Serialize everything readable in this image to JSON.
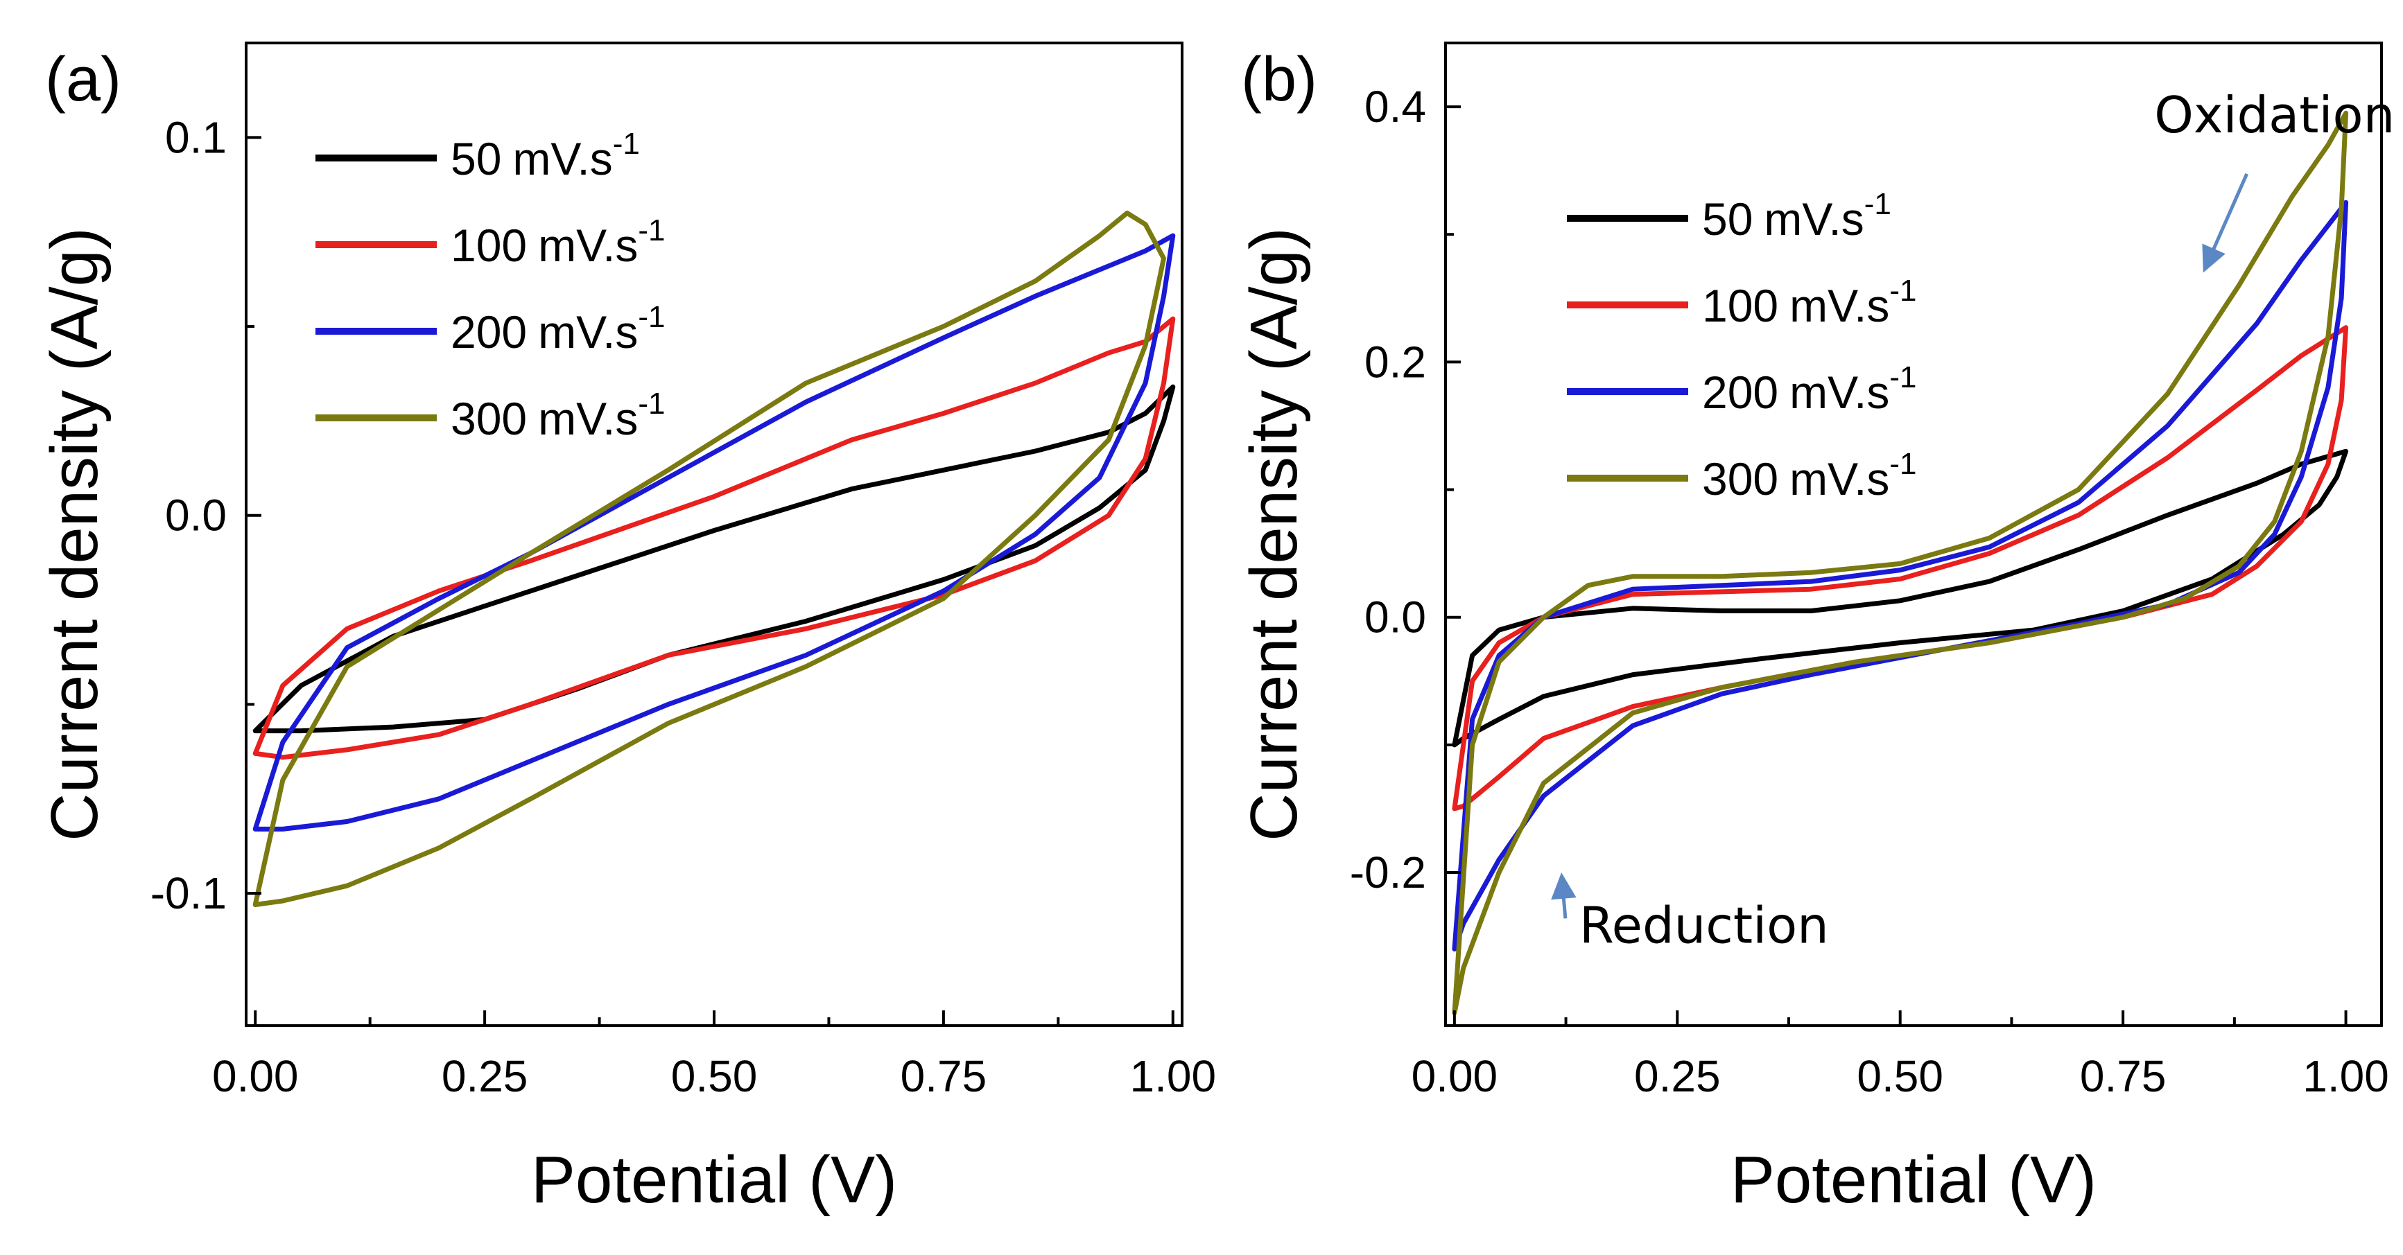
{
  "colors": {
    "50": "#000000",
    "100": "#e8201e",
    "200": "#1a1ad6",
    "300": "#7a7a10",
    "arrow": "#5b87c5"
  },
  "chart_data": [
    {
      "type": "line",
      "panel_label": "(a)",
      "xlabel": "Potential (V)",
      "ylabel": "Current density (A/g)",
      "xlim": [
        -0.01,
        1.01
      ],
      "ylim": [
        -0.135,
        0.125
      ],
      "xticks": [
        0.0,
        0.25,
        0.5,
        0.75,
        1.0
      ],
      "xtick_labels": [
        "0.00",
        "0.25",
        "0.50",
        "0.75",
        "1.00"
      ],
      "yticks": [
        -0.1,
        0.0,
        0.1
      ],
      "ytick_labels": [
        "-0.1",
        "0.0",
        "0.1"
      ],
      "legend_position": "top-left",
      "series": [
        {
          "name": "50 mV.s-1",
          "rate": "50",
          "unit_main": "mV.s",
          "unit_sup": "-1",
          "color_key": "50",
          "x": [
            0.0,
            0.05,
            0.15,
            0.25,
            0.35,
            0.5,
            0.65,
            0.75,
            0.85,
            0.93,
            0.97,
            1.0,
            0.99,
            0.97,
            0.92,
            0.85,
            0.75,
            0.6,
            0.45,
            0.35,
            0.25,
            0.15,
            0.05,
            0.0
          ],
          "y": [
            -0.057,
            -0.045,
            -0.032,
            -0.024,
            -0.016,
            -0.004,
            0.007,
            0.012,
            0.017,
            0.022,
            0.027,
            0.034,
            0.025,
            0.012,
            0.002,
            -0.008,
            -0.017,
            -0.028,
            -0.037,
            -0.046,
            -0.054,
            -0.056,
            -0.057,
            -0.057
          ]
        },
        {
          "name": "100 mV.s-1",
          "rate": "100",
          "unit_main": "mV.s",
          "unit_sup": "-1",
          "color_key": "100",
          "x": [
            0.0,
            0.03,
            0.1,
            0.2,
            0.3,
            0.5,
            0.65,
            0.75,
            0.85,
            0.93,
            0.97,
            1.0,
            0.99,
            0.97,
            0.93,
            0.85,
            0.75,
            0.6,
            0.45,
            0.3,
            0.2,
            0.1,
            0.03,
            0.0
          ],
          "y": [
            -0.063,
            -0.045,
            -0.03,
            -0.02,
            -0.012,
            0.005,
            0.02,
            0.027,
            0.035,
            0.043,
            0.046,
            0.052,
            0.035,
            0.015,
            0.0,
            -0.012,
            -0.021,
            -0.03,
            -0.037,
            -0.05,
            -0.058,
            -0.062,
            -0.064,
            -0.063
          ]
        },
        {
          "name": "200 mV.s-1",
          "rate": "200",
          "unit_main": "mV.s",
          "unit_sup": "-1",
          "color_key": "200",
          "x": [
            0.0,
            0.03,
            0.1,
            0.2,
            0.3,
            0.45,
            0.6,
            0.75,
            0.85,
            0.93,
            0.97,
            1.0,
            0.99,
            0.97,
            0.92,
            0.85,
            0.75,
            0.6,
            0.45,
            0.3,
            0.2,
            0.1,
            0.03,
            0.0
          ],
          "y": [
            -0.083,
            -0.06,
            -0.035,
            -0.022,
            -0.01,
            0.01,
            0.03,
            0.047,
            0.058,
            0.066,
            0.07,
            0.074,
            0.058,
            0.035,
            0.01,
            -0.005,
            -0.02,
            -0.037,
            -0.05,
            -0.065,
            -0.075,
            -0.081,
            -0.083,
            -0.083
          ]
        },
        {
          "name": "300 mV.s-1",
          "rate": "300",
          "unit_main": "mV.s",
          "unit_sup": "-1",
          "color_key": "300",
          "x": [
            0.0,
            0.03,
            0.1,
            0.2,
            0.3,
            0.45,
            0.6,
            0.75,
            0.85,
            0.92,
            0.95,
            0.97,
            0.99,
            0.97,
            0.93,
            0.85,
            0.75,
            0.6,
            0.45,
            0.3,
            0.2,
            0.1,
            0.03,
            0.0
          ],
          "y": [
            -0.103,
            -0.07,
            -0.04,
            -0.025,
            -0.01,
            0.012,
            0.035,
            0.05,
            0.062,
            0.074,
            0.08,
            0.077,
            0.068,
            0.045,
            0.02,
            0.0,
            -0.022,
            -0.04,
            -0.055,
            -0.075,
            -0.088,
            -0.098,
            -0.102,
            -0.103
          ]
        }
      ]
    },
    {
      "type": "line",
      "panel_label": "(b)",
      "xlabel": "Potential (V)",
      "ylabel": "Current density (A/g)",
      "xlim": [
        -0.01,
        1.04
      ],
      "ylim": [
        -0.32,
        0.45
      ],
      "xticks": [
        0.0,
        0.25,
        0.5,
        0.75,
        1.0
      ],
      "xtick_labels": [
        "0.00",
        "0.25",
        "0.50",
        "0.75",
        "1.00"
      ],
      "yticks": [
        -0.2,
        0.0,
        0.2,
        0.4
      ],
      "ytick_labels": [
        "-0.2",
        "0.0",
        "0.2",
        "0.4"
      ],
      "legend_position": "top-left",
      "annotations": [
        {
          "text": "Oxidation",
          "x": 0.92,
          "y": 0.38,
          "arrow_to": [
            0.84,
            0.27
          ]
        },
        {
          "text": "Reduction",
          "x": 0.28,
          "y": -0.255,
          "arrow_to": [
            0.12,
            -0.2
          ]
        }
      ],
      "series": [
        {
          "name": "50 mV.s-1",
          "rate": "50",
          "unit_main": "mV.s",
          "unit_sup": "-1",
          "color_key": "50",
          "x": [
            0.0,
            0.02,
            0.05,
            0.1,
            0.2,
            0.3,
            0.4,
            0.5,
            0.6,
            0.7,
            0.8,
            0.9,
            0.95,
            1.0,
            0.99,
            0.97,
            0.93,
            0.85,
            0.75,
            0.65,
            0.5,
            0.35,
            0.2,
            0.1,
            0.05,
            0.01,
            0.0
          ],
          "y": [
            -0.1,
            -0.03,
            -0.01,
            0.0,
            0.007,
            0.005,
            0.005,
            0.013,
            0.028,
            0.053,
            0.08,
            0.105,
            0.12,
            0.13,
            0.11,
            0.088,
            0.065,
            0.03,
            0.005,
            -0.01,
            -0.02,
            -0.032,
            -0.045,
            -0.062,
            -0.08,
            -0.095,
            -0.1
          ]
        },
        {
          "name": "100 mV.s-1",
          "rate": "100",
          "unit_main": "mV.s",
          "unit_sup": "-1",
          "color_key": "100",
          "x": [
            0.0,
            0.02,
            0.05,
            0.1,
            0.2,
            0.3,
            0.4,
            0.5,
            0.6,
            0.7,
            0.8,
            0.9,
            0.95,
            1.0,
            0.995,
            0.98,
            0.95,
            0.9,
            0.85,
            0.75,
            0.6,
            0.45,
            0.3,
            0.2,
            0.1,
            0.05,
            0.01,
            0.0
          ],
          "y": [
            -0.15,
            -0.05,
            -0.02,
            0.0,
            0.018,
            0.02,
            0.022,
            0.03,
            0.05,
            0.08,
            0.125,
            0.178,
            0.205,
            0.227,
            0.17,
            0.12,
            0.075,
            0.04,
            0.018,
            0.0,
            -0.02,
            -0.035,
            -0.055,
            -0.07,
            -0.095,
            -0.125,
            -0.148,
            -0.15
          ]
        },
        {
          "name": "200 mV.s-1",
          "rate": "200",
          "unit_main": "mV.s",
          "unit_sup": "-1",
          "color_key": "200",
          "x": [
            0.0,
            0.02,
            0.05,
            0.1,
            0.2,
            0.3,
            0.4,
            0.5,
            0.6,
            0.7,
            0.8,
            0.9,
            0.95,
            1.0,
            0.995,
            0.98,
            0.95,
            0.92,
            0.88,
            0.8,
            0.7,
            0.55,
            0.4,
            0.3,
            0.2,
            0.1,
            0.05,
            0.01,
            0.0
          ],
          "y": [
            -0.26,
            -0.08,
            -0.03,
            0.0,
            0.022,
            0.025,
            0.028,
            0.037,
            0.055,
            0.09,
            0.15,
            0.23,
            0.28,
            0.325,
            0.25,
            0.18,
            0.11,
            0.065,
            0.035,
            0.01,
            -0.005,
            -0.025,
            -0.045,
            -0.06,
            -0.085,
            -0.14,
            -0.19,
            -0.24,
            -0.26
          ]
        },
        {
          "name": "300 mV.s-1",
          "rate": "300",
          "unit_main": "mV.s",
          "unit_sup": "-1",
          "color_key": "300",
          "x": [
            0.0,
            0.02,
            0.05,
            0.1,
            0.15,
            0.2,
            0.3,
            0.4,
            0.5,
            0.6,
            0.7,
            0.8,
            0.88,
            0.94,
            0.98,
            1.0,
            0.995,
            0.98,
            0.95,
            0.92,
            0.88,
            0.82,
            0.75,
            0.6,
            0.45,
            0.3,
            0.2,
            0.1,
            0.05,
            0.01,
            0.0
          ],
          "y": [
            -0.31,
            -0.1,
            -0.035,
            0.0,
            0.025,
            0.032,
            0.032,
            0.035,
            0.042,
            0.062,
            0.1,
            0.175,
            0.26,
            0.33,
            0.37,
            0.395,
            0.32,
            0.22,
            0.13,
            0.075,
            0.04,
            0.015,
            0.0,
            -0.02,
            -0.035,
            -0.055,
            -0.075,
            -0.13,
            -0.2,
            -0.275,
            -0.31
          ]
        }
      ]
    }
  ]
}
